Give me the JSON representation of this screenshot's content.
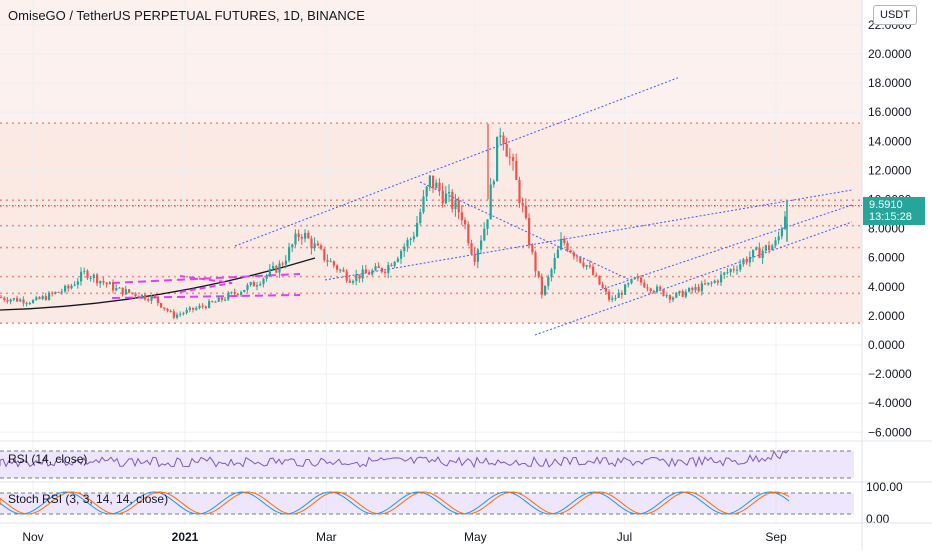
{
  "header": {
    "title": "OmiseGO / TetherUS PERPETUAL FUTURES, 1D, BINANCE",
    "currency": "USDT"
  },
  "last_price": {
    "value": "9.5910",
    "countdown": "13:15:28"
  },
  "indicators": {
    "rsi_label": "RSI (14, close)",
    "stoch_label": "Stoch RSI (3, 3, 14, 14, close)",
    "stoch_ticks": [
      "100.00",
      "0.00"
    ]
  },
  "colors": {
    "up": "#26a69a",
    "down": "#ef5350",
    "band": "#f7d7cd",
    "level_dotted": "#f28b82",
    "trend_blue": "#3d5afe",
    "magenta": "#e040fb",
    "rsi": "#7e57c2",
    "stoch_k": "#2196f3",
    "stoch_d": "#ff6d00"
  },
  "chart_data": {
    "type": "candlestick",
    "title": "OmiseGO / TetherUS PERPETUAL FUTURES, 1D, BINANCE",
    "y_axis": {
      "ylim": [
        -6.6,
        22.2
      ],
      "ticks": [
        22,
        20,
        18,
        16,
        14,
        12,
        10,
        8,
        6,
        4,
        2,
        0,
        -2,
        -4,
        -6
      ],
      "tick_labels": [
        "22.0000",
        "20.0000",
        "18.0000",
        "16.0000",
        "14.0000",
        "12.0000",
        "10.0000",
        "8.0000",
        "6.0000",
        "4.0000",
        "2.0000",
        "0.0000",
        "−2.0000",
        "−4.0000",
        "−6.0000"
      ]
    },
    "x_axis": {
      "tick_labels": [
        "Nov",
        "2021",
        "Mar",
        "May",
        "Jul",
        "Sep"
      ]
    },
    "horizontal_levels": [
      15.25,
      9.95,
      9.55,
      8.2,
      6.7,
      4.7,
      3.55,
      1.5
    ],
    "price_path": [
      {
        "date": "Oct 15",
        "price": 3.3
      },
      {
        "date": "Nov 1",
        "price": 3.0
      },
      {
        "date": "Nov 15",
        "price": 3.9
      },
      {
        "date": "Nov 22",
        "price": 5.0
      },
      {
        "date": "Dec 5",
        "price": 3.8
      },
      {
        "date": "Dec 20",
        "price": 3.2
      },
      {
        "date": "Dec 28",
        "price": 2.0
      },
      {
        "date": "Jan 15",
        "price": 3.0
      },
      {
        "date": "Jan 30",
        "price": 4.2
      },
      {
        "date": "Feb 10",
        "price": 5.5
      },
      {
        "date": "Feb 18",
        "price": 7.8
      },
      {
        "date": "Feb 28",
        "price": 6.0
      },
      {
        "date": "Mar 10",
        "price": 4.6
      },
      {
        "date": "Mar 25",
        "price": 5.3
      },
      {
        "date": "Apr 5",
        "price": 7.5
      },
      {
        "date": "Apr 12",
        "price": 11.3
      },
      {
        "date": "Apr 25",
        "price": 9.0
      },
      {
        "date": "Apr 30",
        "price": 6.0
      },
      {
        "date": "May 5",
        "price": 8.5
      },
      {
        "date": "May 11",
        "price": 15.2
      },
      {
        "date": "May 19",
        "price": 10.0
      },
      {
        "date": "May 24",
        "price": 6.0
      },
      {
        "date": "May 28",
        "price": 3.4
      },
      {
        "date": "Jun 5",
        "price": 7.2
      },
      {
        "date": "Jun 15",
        "price": 5.5
      },
      {
        "date": "Jun 25",
        "price": 3.0
      },
      {
        "date": "Jul 5",
        "price": 4.5
      },
      {
        "date": "Jul 20",
        "price": 3.3
      },
      {
        "date": "Aug 5",
        "price": 4.2
      },
      {
        "date": "Aug 20",
        "price": 6.0
      },
      {
        "date": "Sep 1",
        "price": 7.0
      },
      {
        "date": "Sep 5",
        "price": 9.59
      }
    ],
    "rsi": {
      "range": [
        0,
        100
      ],
      "levels": [
        70,
        30
      ]
    },
    "stoch_rsi": {
      "range": [
        0,
        100
      ],
      "levels": [
        80,
        20
      ],
      "tick_labels": [
        "100.00",
        "0.00"
      ]
    }
  }
}
